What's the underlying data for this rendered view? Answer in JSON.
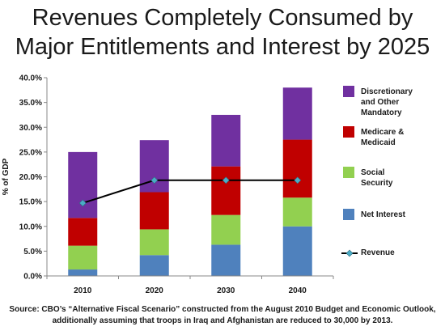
{
  "title_lines": [
    "Revenues Completely Consumed by",
    "Major Entitlements and Interest by 2025"
  ],
  "source_lines": [
    "Source: CBO’s “Alternative Fiscal Scenario” constructed from the August 2010 Budget and Economic Outlook,",
    "additionally assuming that troops in Iraq and Afghanistan are reduced to 30,000 by 2013."
  ],
  "chart_data": {
    "type": "bar",
    "stacked": true,
    "ylabel": "% of GDP",
    "xlabel": "",
    "ylim": [
      0,
      40
    ],
    "ytick_step": 5,
    "ytick_format": "percent_1dp",
    "grid": false,
    "legend_placement": "right",
    "categories": [
      "2010",
      "2020",
      "2030",
      "2040"
    ],
    "series": [
      {
        "name": "Net Interest",
        "color": "#4f81bd",
        "values": [
          1.3,
          4.2,
          6.3,
          10.0
        ]
      },
      {
        "name": "Social Security",
        "color": "#92d050",
        "values": [
          4.8,
          5.2,
          6.0,
          5.8
        ]
      },
      {
        "name": "Medicare & Medicaid",
        "color": "#c00000",
        "values": [
          5.6,
          7.5,
          9.8,
          11.7
        ]
      },
      {
        "name": "Discretionary and Other Mandatory",
        "color": "#7030a0",
        "values": [
          13.3,
          10.5,
          10.4,
          10.5
        ]
      }
    ],
    "line_series": {
      "name": "Revenue",
      "color": "#000000",
      "marker_color": "#4bacc6",
      "values": [
        14.7,
        19.3,
        19.3,
        19.3
      ]
    },
    "legend": [
      {
        "lines": [
          "Discretionary",
          "and Other",
          "Mandatory"
        ],
        "color": "#7030a0",
        "kind": "box"
      },
      {
        "lines": [
          "Medicare &",
          "Medicaid"
        ],
        "color": "#c00000",
        "kind": "box"
      },
      {
        "lines": [
          "Social",
          "Security"
        ],
        "color": "#92d050",
        "kind": "box"
      },
      {
        "lines": [
          "Net Interest"
        ],
        "color": "#4f81bd",
        "kind": "box"
      },
      {
        "lines": [
          "Revenue"
        ],
        "color": "#000000",
        "kind": "line"
      }
    ]
  }
}
